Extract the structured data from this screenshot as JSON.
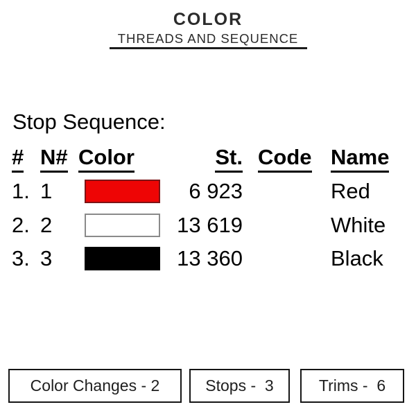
{
  "header": {
    "title": "COLOR",
    "subtitle": "THREADS AND SEQUENCE"
  },
  "section": {
    "heading": "Stop Sequence:"
  },
  "table": {
    "columns": [
      "#",
      "N#",
      "Color",
      "St.",
      "Code",
      "Name"
    ],
    "rows": [
      {
        "num": "1.",
        "n": "1",
        "swatch": "#ee0505",
        "swatch_border": "#7d1416",
        "st": "6 923",
        "code": "",
        "name": "Red"
      },
      {
        "num": "2.",
        "n": "2",
        "swatch": "#ffffff",
        "swatch_border": "#8a8a8a",
        "st": "13 619",
        "code": "",
        "name": "White"
      },
      {
        "num": "3.",
        "n": "3",
        "swatch": "#000000",
        "swatch_border": "#000000",
        "st": "13 360",
        "code": "",
        "name": "Black"
      }
    ]
  },
  "footer": {
    "boxes": [
      {
        "label": "Color Changes - 2"
      },
      {
        "label": "Stops -  3"
      },
      {
        "label": "Trims -  6"
      }
    ]
  },
  "colors": {
    "text": "#000000",
    "title_text": "#2b2b2b",
    "rule": "#1b1b1b",
    "box_border": "#161616"
  }
}
